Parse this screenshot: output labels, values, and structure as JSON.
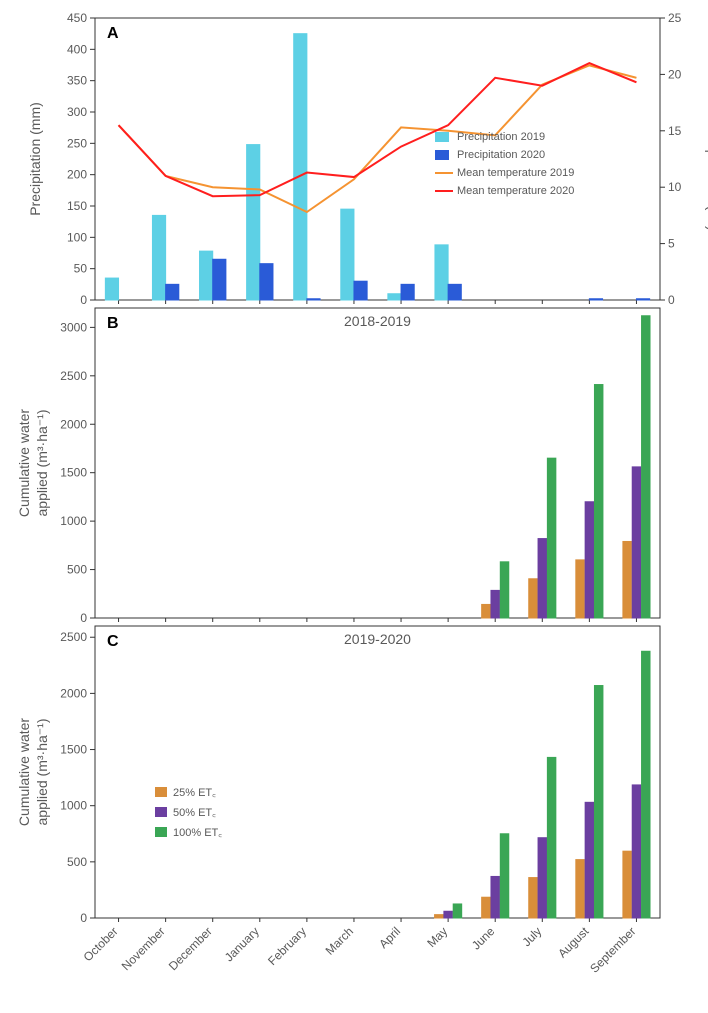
{
  "months": [
    "October",
    "November",
    "December",
    "January",
    "February",
    "March",
    "April",
    "May",
    "June",
    "July",
    "August",
    "September"
  ],
  "panelA": {
    "label": "A",
    "left_axis_label": "Precipitation (mm)",
    "right_axis_label": "Mean temperature (°C)",
    "left_ylim": [
      0,
      450
    ],
    "left_ticks": [
      0,
      50,
      100,
      150,
      200,
      250,
      300,
      350,
      400,
      450
    ],
    "right_ylim": [
      0,
      25
    ],
    "right_ticks": [
      0,
      5,
      10,
      15,
      20,
      25
    ],
    "precip2019": [
      35,
      135,
      78,
      248,
      425,
      145,
      10,
      88,
      0,
      0,
      0,
      0
    ],
    "precip2020": [
      0,
      25,
      65,
      58,
      2,
      30,
      25,
      25,
      0,
      0,
      2,
      2
    ],
    "temp2019": [
      15.5,
      11,
      10,
      9.8,
      7.8,
      10.7,
      15.3,
      15,
      14.6,
      19.1,
      20.8,
      19.7
    ],
    "temp2020": [
      15.5,
      11,
      9.2,
      9.3,
      11.3,
      10.9,
      13.6,
      15.5,
      19.7,
      19.0,
      21,
      19.3
    ],
    "colors": {
      "precip2019": "#5dd0e5",
      "precip2020": "#2a5bd7",
      "temp2019": "#f59331",
      "temp2020": "#ff1e1e",
      "axis": "#333333",
      "text": "#595959"
    },
    "legend": [
      {
        "type": "bar",
        "color": "#5dd0e5",
        "label": "Precipitation 2019"
      },
      {
        "type": "bar",
        "color": "#2a5bd7",
        "label": "Precipitation 2020"
      },
      {
        "type": "line",
        "color": "#f59331",
        "label": "Mean temperature 2019"
      },
      {
        "type": "line",
        "color": "#ff1e1e",
        "label": "Mean temperature 2020"
      }
    ]
  },
  "panelB": {
    "label": "B",
    "title": "2018-2019",
    "ylabel": "Cumulative water applied (m³·ha⁻¹)",
    "ylim": [
      0,
      3200
    ],
    "yticks": [
      0,
      500,
      1000,
      1500,
      2000,
      2500,
      3000
    ],
    "series": {
      "25": [
        0,
        0,
        0,
        0,
        0,
        0,
        0,
        0,
        140,
        405,
        600,
        790
      ],
      "50": [
        0,
        0,
        0,
        0,
        0,
        0,
        0,
        0,
        285,
        820,
        1200,
        1560
      ],
      "100": [
        0,
        0,
        0,
        0,
        0,
        0,
        0,
        0,
        580,
        1650,
        2410,
        3120
      ]
    },
    "colors": {
      "25": "#d98e3a",
      "50": "#6b3fa0",
      "100": "#3aa655",
      "axis": "#333333",
      "text": "#595959"
    }
  },
  "panelC": {
    "label": "C",
    "title": "2019-2020",
    "ylabel": "Cumulative water applied (m³·ha⁻¹)",
    "ylim": [
      0,
      2600
    ],
    "yticks": [
      0,
      500,
      1000,
      1500,
      2000,
      2500
    ],
    "series": {
      "25": [
        0,
        0,
        0,
        0,
        0,
        0,
        0,
        30,
        185,
        360,
        520,
        595
      ],
      "50": [
        0,
        0,
        0,
        0,
        0,
        0,
        0,
        60,
        370,
        715,
        1030,
        1185
      ],
      "100": [
        0,
        0,
        0,
        0,
        0,
        0,
        0,
        125,
        750,
        1430,
        2070,
        2375
      ]
    },
    "colors": {
      "25": "#d98e3a",
      "50": "#6b3fa0",
      "100": "#3aa655",
      "axis": "#333333",
      "text": "#595959"
    },
    "legend": [
      {
        "color": "#d98e3a",
        "label": "25% ET꜀"
      },
      {
        "color": "#6b3fa0",
        "label": "50% ET꜀"
      },
      {
        "color": "#3aa655",
        "label": "100% ET꜀"
      }
    ]
  },
  "fonts": {
    "axis_label": 14,
    "tick": 12,
    "panel_label": 16,
    "title": 14,
    "legend": 11,
    "xtick": 12
  }
}
